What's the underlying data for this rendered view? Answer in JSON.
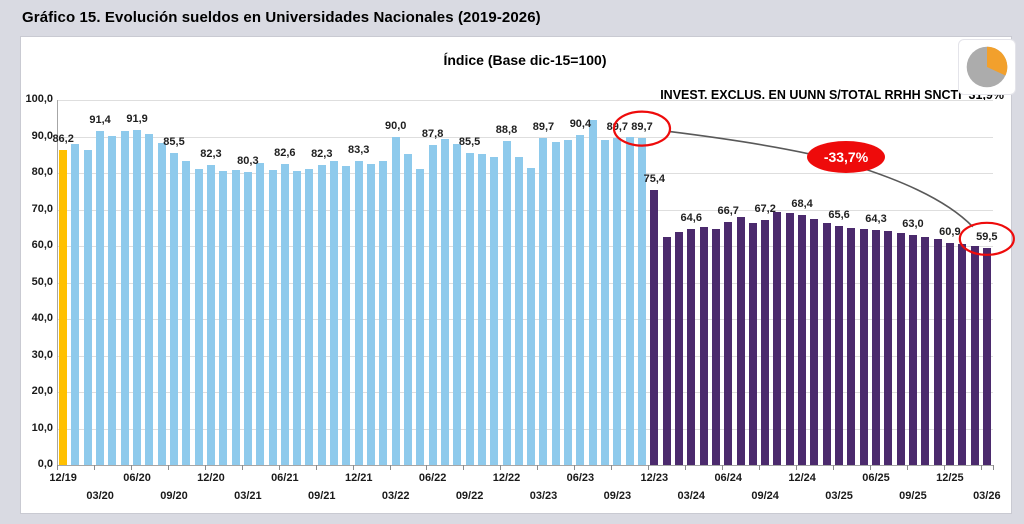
{
  "page": {
    "title": "Gráfico 15. Evolución sueldos en Universidades Nacionales (2019-2026)"
  },
  "colors": {
    "background": "#d9dae2",
    "panel": "#ffffff",
    "grid": "#dedede",
    "axis": "#a6a6a6",
    "bar_gold": "#ffc000",
    "bar_blue": "#8ecaec",
    "bar_purple": "#4b2a6d",
    "annotation_red": "#ee0b0b",
    "annotation_line": "#595959",
    "pie_slice": "#f2a02c",
    "pie_rest": "#acacac"
  },
  "chart_data": {
    "type": "bar",
    "title": "Índice (Base dic-15=100)",
    "right_note": "INVEST. EXCLUS. EN UUNN S/TOTAL RRHH SNCTI  31,9%",
    "xlabel": "",
    "ylabel": "",
    "ylim": [
      0,
      100
    ],
    "grid": true,
    "legend_position": "none",
    "y_tick_labels": [
      "0,0",
      "10,0",
      "20,0",
      "30,0",
      "40,0",
      "50,0",
      "60,0",
      "70,0",
      "80,0",
      "90,0",
      "100,0"
    ],
    "x_tick_step": 3,
    "x": [
      "12/19",
      "01/20",
      "02/20",
      "03/20",
      "04/20",
      "05/20",
      "06/20",
      "07/20",
      "08/20",
      "09/20",
      "10/20",
      "11/20",
      "12/20",
      "01/21",
      "02/21",
      "03/21",
      "04/21",
      "05/21",
      "06/21",
      "07/21",
      "08/21",
      "09/21",
      "10/21",
      "11/21",
      "12/21",
      "01/22",
      "02/22",
      "03/22",
      "04/22",
      "05/22",
      "06/22",
      "07/22",
      "08/22",
      "09/22",
      "10/22",
      "11/22",
      "12/22",
      "01/23",
      "02/23",
      "03/23",
      "04/23",
      "05/23",
      "06/23",
      "07/23",
      "08/23",
      "09/23",
      "10/23",
      "11/23",
      "12/23",
      "01/24",
      "02/24",
      "03/24",
      "04/24",
      "05/24",
      "06/24",
      "07/24",
      "08/24",
      "09/24",
      "10/24",
      "11/24",
      "12/24",
      "01/25",
      "02/25",
      "03/25",
      "04/25",
      "05/25",
      "06/25",
      "07/25",
      "08/25",
      "09/25",
      "10/25",
      "11/25",
      "12/25",
      "01/26",
      "02/26",
      "03/26"
    ],
    "values": [
      86.2,
      88.0,
      86.3,
      91.4,
      90.2,
      91.5,
      91.9,
      90.8,
      88.2,
      85.5,
      83.2,
      81.0,
      82.3,
      80.6,
      80.9,
      80.3,
      82.8,
      80.9,
      82.6,
      80.6,
      81.1,
      82.3,
      83.4,
      82.0,
      83.3,
      82.4,
      83.2,
      90.0,
      85.3,
      81.0,
      87.8,
      89.3,
      88.0,
      85.5,
      85.2,
      84.4,
      88.8,
      84.5,
      81.5,
      89.7,
      88.5,
      89.0,
      90.4,
      94.5,
      89.0,
      89.7,
      90.0,
      89.7,
      75.4,
      62.4,
      63.9,
      64.6,
      65.1,
      64.6,
      66.7,
      67.9,
      66.4,
      67.2,
      69.3,
      69.0,
      68.4,
      67.5,
      66.3,
      65.6,
      65.0,
      64.7,
      64.3,
      64.0,
      63.6,
      63.0,
      62.5,
      62.0,
      60.9,
      60.5,
      60.0,
      59.5
    ],
    "segments": [
      {
        "from": 0,
        "to": 0,
        "color_key": "bar_gold"
      },
      {
        "from": 1,
        "to": 47,
        "color_key": "bar_blue"
      },
      {
        "from": 48,
        "to": 75,
        "color_key": "bar_purple"
      }
    ],
    "data_labels": [
      {
        "i": 0,
        "text": "86,2"
      },
      {
        "i": 3,
        "text": "91,4"
      },
      {
        "i": 6,
        "text": "91,9"
      },
      {
        "i": 9,
        "text": "85,5"
      },
      {
        "i": 12,
        "text": "82,3"
      },
      {
        "i": 15,
        "text": "80,3"
      },
      {
        "i": 18,
        "text": "82,6"
      },
      {
        "i": 21,
        "text": "82,3"
      },
      {
        "i": 24,
        "text": "83,3"
      },
      {
        "i": 27,
        "text": "90,0"
      },
      {
        "i": 30,
        "text": "87,8"
      },
      {
        "i": 33,
        "text": "85,5"
      },
      {
        "i": 36,
        "text": "88,8"
      },
      {
        "i": 39,
        "text": "89,7"
      },
      {
        "i": 42,
        "text": "90,4"
      },
      {
        "i": 45,
        "text": "89,7"
      },
      {
        "i": 47,
        "text": "89,7"
      },
      {
        "i": 48,
        "text": "75,4"
      },
      {
        "i": 51,
        "text": "64,6"
      },
      {
        "i": 54,
        "text": "66,7"
      },
      {
        "i": 57,
        "text": "67,2"
      },
      {
        "i": 60,
        "text": "68,4"
      },
      {
        "i": 63,
        "text": "65,6"
      },
      {
        "i": 66,
        "text": "64,3"
      },
      {
        "i": 69,
        "text": "63,0"
      },
      {
        "i": 72,
        "text": "60,9"
      },
      {
        "i": 75,
        "text": "59,5"
      }
    ],
    "circled_label_indices": [
      47,
      75
    ],
    "annotation": {
      "text": "-33,7%"
    },
    "pie_icon": {
      "percent": 31.9
    }
  }
}
